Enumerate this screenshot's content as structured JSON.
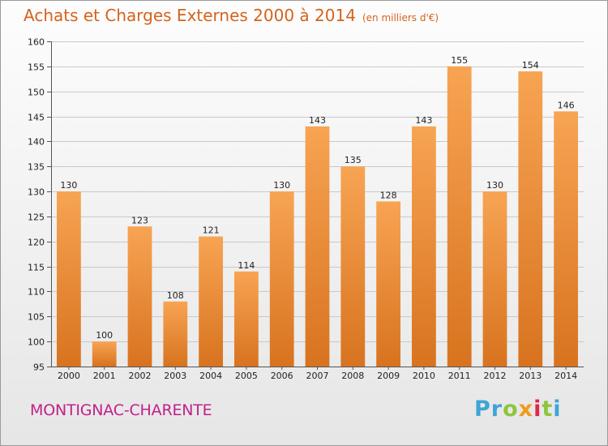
{
  "header": {
    "title": "Achats et Charges Externes 2000 à 2014",
    "subtitle": "(en milliers d'€)"
  },
  "footer": {
    "commune": "MONTIGNAC-CHARENTE",
    "logo": "Proxiti"
  },
  "colors": {
    "title": "#d4631e",
    "commune": "#c2208a",
    "bar_top": "#f7a453",
    "bar_bottom": "#d8731f"
  },
  "chart_data": {
    "type": "bar",
    "title": "Achats et Charges Externes 2000 à 2014",
    "subtitle": "(en milliers d'€)",
    "xlabel": "",
    "ylabel": "",
    "categories": [
      "2000",
      "2001",
      "2002",
      "2003",
      "2004",
      "2005",
      "2006",
      "2007",
      "2008",
      "2009",
      "2010",
      "2011",
      "2012",
      "2013",
      "2014"
    ],
    "values": [
      130,
      100,
      123,
      108,
      121,
      114,
      130,
      143,
      135,
      128,
      143,
      155,
      130,
      154,
      146
    ],
    "ylim": [
      95,
      160
    ],
    "yticks": [
      95,
      100,
      105,
      110,
      115,
      120,
      125,
      130,
      135,
      140,
      145,
      150,
      155,
      160
    ],
    "grid": true,
    "legend": "none"
  }
}
